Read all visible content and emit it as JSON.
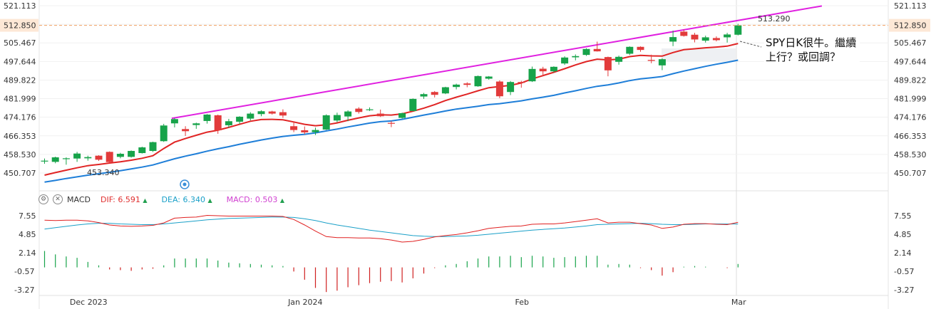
{
  "chart_data": [
    {
      "type": "candlestick",
      "title": "",
      "price_axis_ticks": [
        521.113,
        513.29,
        505.467,
        497.644,
        489.822,
        481.999,
        474.176,
        466.353,
        458.53,
        450.707
      ],
      "price_axis_labels": [
        "521.113",
        "505.467",
        "497.644",
        "489.822",
        "481.999",
        "474.176",
        "466.353",
        "458.530",
        "450.707"
      ],
      "ylim": [
        446.5,
        523.5
      ],
      "current_price": 512.85,
      "current_price_label": "512.850",
      "high_marker": {
        "value": 513.29,
        "label": "513.290"
      },
      "low_marker": {
        "value": 453.34,
        "label": "453.340"
      },
      "x_labels": [
        {
          "label": "Dec 2023",
          "index": 4
        },
        {
          "label": "Jan 2024",
          "index": 24
        },
        {
          "label": "Feb",
          "index": 44
        },
        {
          "label": "Mar",
          "index": 64
        }
      ],
      "candles": [
        {
          "o": 455.6,
          "h": 456.8,
          "l": 454.6,
          "c": 455.9
        },
        {
          "o": 455.4,
          "h": 457.6,
          "l": 454.8,
          "c": 457.3
        },
        {
          "o": 456.6,
          "h": 457.3,
          "l": 454.2,
          "c": 456.9
        },
        {
          "o": 456.8,
          "h": 459.6,
          "l": 455.4,
          "c": 458.9
        },
        {
          "o": 456.9,
          "h": 458.0,
          "l": 455.9,
          "c": 457.4
        },
        {
          "o": 458.0,
          "h": 458.2,
          "l": 455.8,
          "c": 456.3
        },
        {
          "o": 459.6,
          "h": 459.8,
          "l": 454.9,
          "c": 455.3
        },
        {
          "o": 457.5,
          "h": 459.2,
          "l": 456.9,
          "c": 458.8
        },
        {
          "o": 457.5,
          "h": 460.2,
          "l": 457.2,
          "c": 460.0
        },
        {
          "o": 459.1,
          "h": 461.8,
          "l": 458.9,
          "c": 461.5
        },
        {
          "o": 460.0,
          "h": 463.9,
          "l": 459.6,
          "c": 463.7
        },
        {
          "o": 464.1,
          "h": 471.4,
          "l": 463.8,
          "c": 470.7
        },
        {
          "o": 471.6,
          "h": 473.9,
          "l": 469.9,
          "c": 473.4
        },
        {
          "o": 469.2,
          "h": 470.4,
          "l": 466.3,
          "c": 468.3
        },
        {
          "o": 470.9,
          "h": 471.9,
          "l": 469.3,
          "c": 471.6
        },
        {
          "o": 472.6,
          "h": 475.5,
          "l": 471.5,
          "c": 475.3
        },
        {
          "o": 475.0,
          "h": 475.3,
          "l": 467.2,
          "c": 468.7
        },
        {
          "o": 470.8,
          "h": 473.5,
          "l": 469.8,
          "c": 472.5
        },
        {
          "o": 472.3,
          "h": 474.6,
          "l": 471.3,
          "c": 474.4
        },
        {
          "o": 473.6,
          "h": 476.3,
          "l": 472.8,
          "c": 475.7
        },
        {
          "o": 475.5,
          "h": 477.1,
          "l": 474.6,
          "c": 476.7
        },
        {
          "o": 476.6,
          "h": 476.9,
          "l": 475.3,
          "c": 475.7
        },
        {
          "o": 476.3,
          "h": 477.5,
          "l": 473.9,
          "c": 474.9
        },
        {
          "o": 470.4,
          "h": 472.3,
          "l": 467.9,
          "c": 468.8
        },
        {
          "o": 468.7,
          "h": 470.3,
          "l": 467.0,
          "c": 467.8
        },
        {
          "o": 467.9,
          "h": 469.8,
          "l": 466.7,
          "c": 468.8
        },
        {
          "o": 469.0,
          "h": 475.4,
          "l": 468.8,
          "c": 475.0
        },
        {
          "o": 472.8,
          "h": 476.1,
          "l": 472.0,
          "c": 475.1
        },
        {
          "o": 474.5,
          "h": 477.1,
          "l": 472.5,
          "c": 476.6
        },
        {
          "o": 477.8,
          "h": 478.4,
          "l": 475.7,
          "c": 476.4
        },
        {
          "o": 477.3,
          "h": 478.3,
          "l": 476.8,
          "c": 477.5
        },
        {
          "o": 475.7,
          "h": 477.4,
          "l": 474.3,
          "c": 474.6
        },
        {
          "o": 471.8,
          "h": 472.6,
          "l": 470.0,
          "c": 471.5
        },
        {
          "o": 473.9,
          "h": 476.1,
          "l": 473.6,
          "c": 475.9
        },
        {
          "o": 476.8,
          "h": 482.1,
          "l": 476.7,
          "c": 481.9
        },
        {
          "o": 482.9,
          "h": 484.4,
          "l": 481.9,
          "c": 483.9
        },
        {
          "o": 484.8,
          "h": 485.2,
          "l": 482.5,
          "c": 483.6
        },
        {
          "o": 484.2,
          "h": 487.0,
          "l": 483.9,
          "c": 486.8
        },
        {
          "o": 486.9,
          "h": 488.3,
          "l": 485.9,
          "c": 487.9
        },
        {
          "o": 488.4,
          "h": 488.9,
          "l": 486.8,
          "c": 487.8
        },
        {
          "o": 487.2,
          "h": 491.7,
          "l": 487.0,
          "c": 491.5
        },
        {
          "o": 490.4,
          "h": 491.5,
          "l": 490.0,
          "c": 491.3
        },
        {
          "o": 489.2,
          "h": 489.7,
          "l": 482.2,
          "c": 483.0
        },
        {
          "o": 484.8,
          "h": 489.4,
          "l": 483.5,
          "c": 489.0
        },
        {
          "o": 489.0,
          "h": 489.5,
          "l": 486.6,
          "c": 488.9
        },
        {
          "o": 489.3,
          "h": 495.5,
          "l": 489.0,
          "c": 494.5
        },
        {
          "o": 494.6,
          "h": 495.4,
          "l": 491.4,
          "c": 493.5
        },
        {
          "o": 493.5,
          "h": 495.6,
          "l": 493.0,
          "c": 495.4
        },
        {
          "o": 496.8,
          "h": 499.8,
          "l": 496.2,
          "c": 499.3
        },
        {
          "o": 499.4,
          "h": 500.6,
          "l": 498.1,
          "c": 499.9
        },
        {
          "o": 500.4,
          "h": 503.2,
          "l": 500.0,
          "c": 502.9
        },
        {
          "o": 502.9,
          "h": 506.0,
          "l": 501.8,
          "c": 501.9
        },
        {
          "o": 499.5,
          "h": 499.7,
          "l": 491.4,
          "c": 493.9
        },
        {
          "o": 497.5,
          "h": 500.1,
          "l": 496.3,
          "c": 499.6
        },
        {
          "o": 500.9,
          "h": 504.0,
          "l": 500.4,
          "c": 503.8
        },
        {
          "o": 503.8,
          "h": 504.0,
          "l": 501.7,
          "c": 502.5
        },
        {
          "o": 498.3,
          "h": 500.5,
          "l": 496.9,
          "c": 497.9
        },
        {
          "o": 496.0,
          "h": 499.0,
          "l": 494.0,
          "c": 498.6
        },
        {
          "o": 506.0,
          "h": 510.6,
          "l": 504.1,
          "c": 507.9
        },
        {
          "o": 510.2,
          "h": 511.1,
          "l": 508.1,
          "c": 508.4
        },
        {
          "o": 508.9,
          "h": 509.7,
          "l": 505.7,
          "c": 506.9
        },
        {
          "o": 506.4,
          "h": 508.5,
          "l": 505.6,
          "c": 507.8
        },
        {
          "o": 507.5,
          "h": 508.2,
          "l": 506.1,
          "c": 506.6
        },
        {
          "o": 507.8,
          "h": 509.7,
          "l": 505.6,
          "c": 509.0
        },
        {
          "o": 508.9,
          "h": 513.5,
          "l": 508.6,
          "c": 512.85
        }
      ],
      "ma_red": [
        449.8,
        450.9,
        451.9,
        452.9,
        453.8,
        454.3,
        454.9,
        455.4,
        456.1,
        456.9,
        458.0,
        461.0,
        463.7,
        465.2,
        466.6,
        467.9,
        468.7,
        469.9,
        471.2,
        472.5,
        473.2,
        473.3,
        473.1,
        472.2,
        471.2,
        470.6,
        471.0,
        471.8,
        472.9,
        473.9,
        474.8,
        475.2,
        475.1,
        475.6,
        476.7,
        478.0,
        479.5,
        481.2,
        482.6,
        483.9,
        485.3,
        486.6,
        487.1,
        487.6,
        488.6,
        490.3,
        491.7,
        493.1,
        494.6,
        496.2,
        497.6,
        498.6,
        498.3,
        498.6,
        499.7,
        500.2,
        500.0,
        499.9,
        501.4,
        502.6,
        503.0,
        503.4,
        503.7,
        504.1,
        505.2
      ],
      "ma_blue": [
        446.9,
        447.6,
        448.4,
        449.1,
        449.8,
        450.4,
        451.0,
        451.7,
        452.4,
        453.2,
        454.1,
        455.4,
        456.7,
        457.8,
        458.8,
        459.9,
        460.9,
        461.8,
        462.8,
        463.7,
        464.6,
        465.4,
        466.1,
        466.6,
        467.0,
        467.6,
        468.4,
        469.2,
        470.1,
        470.9,
        471.7,
        472.3,
        472.6,
        473.3,
        474.2,
        475.1,
        475.9,
        476.8,
        477.6,
        478.2,
        478.8,
        479.5,
        479.9,
        480.5,
        481.1,
        481.9,
        482.6,
        483.4,
        484.4,
        485.3,
        486.3,
        487.2,
        487.8,
        488.6,
        489.6,
        490.3,
        490.8,
        491.3,
        492.5,
        493.6,
        494.6,
        495.6,
        496.5,
        497.3,
        498.2
      ],
      "trendline": {
        "from": {
          "index": 12,
          "value": 473.7
        },
        "to": {
          "index": 72,
          "value": 521.0
        }
      },
      "annotation": {
        "text": "SPY日K很牛。繼續上行？或回調？"
      }
    },
    {
      "type": "macd",
      "legend": {
        "name": "MACD",
        "dif_label": "DIF:",
        "dif_value": "6.591",
        "dea_label": "DEA:",
        "dea_value": "6.340",
        "macd_label": "MACD:",
        "macd_value": "0.503"
      },
      "axis_labels": [
        "7.55",
        "4.85",
        "2.14",
        "-0.57",
        "-3.27"
      ],
      "ylim": [
        -4.5,
        9.5
      ],
      "dif": [
        6.9,
        6.85,
        6.9,
        6.9,
        6.8,
        6.55,
        6.2,
        6.05,
        6.0,
        6.05,
        6.15,
        6.5,
        7.2,
        7.3,
        7.35,
        7.6,
        7.55,
        7.5,
        7.5,
        7.5,
        7.5,
        7.5,
        7.45,
        7.0,
        6.2,
        5.3,
        4.5,
        4.35,
        4.35,
        4.3,
        4.3,
        4.2,
        4.0,
        3.7,
        3.8,
        4.1,
        4.45,
        4.65,
        4.8,
        5.05,
        5.35,
        5.7,
        5.85,
        6.0,
        6.05,
        6.3,
        6.35,
        6.35,
        6.5,
        6.7,
        6.9,
        7.1,
        6.5,
        6.6,
        6.6,
        6.4,
        6.2,
        5.7,
        5.9,
        6.3,
        6.4,
        6.4,
        6.3,
        6.25,
        6.59
      ],
      "dea": [
        5.6,
        5.8,
        6.0,
        6.2,
        6.35,
        6.45,
        6.45,
        6.35,
        6.3,
        6.25,
        6.25,
        6.35,
        6.5,
        6.65,
        6.8,
        6.95,
        7.05,
        7.15,
        7.2,
        7.25,
        7.3,
        7.35,
        7.35,
        7.3,
        7.1,
        6.85,
        6.5,
        6.2,
        5.95,
        5.7,
        5.45,
        5.25,
        5.05,
        4.85,
        4.65,
        4.55,
        4.5,
        4.5,
        4.55,
        4.6,
        4.7,
        4.85,
        5.0,
        5.15,
        5.3,
        5.45,
        5.55,
        5.65,
        5.75,
        5.9,
        6.05,
        6.25,
        6.3,
        6.35,
        6.4,
        6.45,
        6.4,
        6.3,
        6.25,
        6.25,
        6.3,
        6.35,
        6.35,
        6.34,
        6.34
      ],
      "hist": [
        2.4,
        1.9,
        1.6,
        1.4,
        0.8,
        0.3,
        -0.3,
        -0.4,
        -0.5,
        -0.3,
        -0.2,
        0.3,
        1.3,
        1.3,
        1.3,
        1.3,
        1.0,
        0.7,
        0.6,
        0.5,
        0.4,
        0.3,
        0.2,
        -0.6,
        -1.8,
        -3.0,
        -3.6,
        -3.4,
        -2.9,
        -2.6,
        -2.3,
        -2.1,
        -2.0,
        -2.2,
        -1.6,
        -0.9,
        -0.1,
        0.3,
        0.5,
        0.9,
        1.3,
        1.6,
        1.6,
        1.7,
        1.5,
        1.7,
        1.6,
        1.4,
        1.5,
        1.6,
        1.7,
        1.7,
        0.4,
        0.5,
        0.4,
        -0.1,
        -0.4,
        -1.2,
        -0.7,
        0.1,
        0.2,
        0.1,
        0.0,
        -0.1,
        0.5
      ]
    }
  ]
}
